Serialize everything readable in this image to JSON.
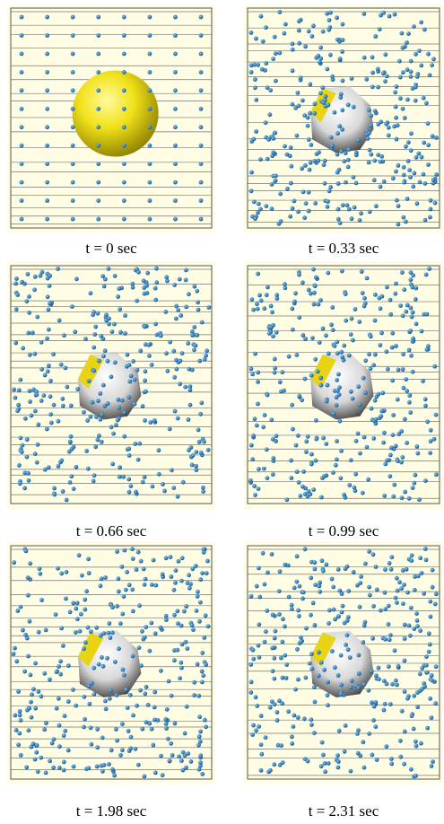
{
  "panels": [
    {
      "caption": "t = 0 sec"
    },
    {
      "caption": "t = 0.33 sec"
    },
    {
      "caption": "t = 0.66 sec"
    },
    {
      "caption": "t = 0.99 sec"
    },
    {
      "caption": "t = 1.98 sec"
    },
    {
      "caption": "t = 2.31 sec"
    }
  ]
}
